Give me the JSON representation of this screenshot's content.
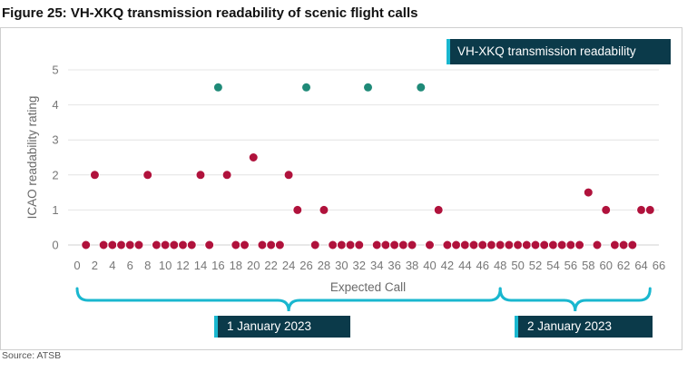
{
  "figure": {
    "title": "Figure 25: VH-XKQ transmission readability of scenic flight calls",
    "source": "Source: ATSB"
  },
  "legend": {
    "label": "VH-XKQ transmission readability"
  },
  "date_groups": [
    {
      "label": "1 January 2023",
      "from": 0,
      "to": 48
    },
    {
      "label": "2 January 2023",
      "from": 48,
      "to": 65
    }
  ],
  "colors": {
    "series_main": "#b0123c",
    "series_alt": "#1f8a78",
    "dot_outline": "#ffffff",
    "brace": "#19b7cf",
    "box_bg": "#0b3a4a"
  },
  "chart_data": {
    "type": "scatter",
    "title": "Figure 25: VH-XKQ transmission readability of scenic flight calls",
    "xlabel": "Expected Call",
    "ylabel": "ICAO readability rating",
    "xlim": [
      0,
      66
    ],
    "ylim": [
      0,
      5
    ],
    "xticks": [
      0,
      2,
      4,
      6,
      8,
      10,
      12,
      14,
      16,
      18,
      20,
      22,
      24,
      26,
      28,
      30,
      32,
      34,
      36,
      38,
      40,
      42,
      44,
      46,
      48,
      50,
      52,
      54,
      56,
      58,
      60,
      62,
      64,
      66
    ],
    "yticks": [
      0,
      1,
      2,
      3,
      4,
      5
    ],
    "grid": true,
    "legend_position": "top-right",
    "series": [
      {
        "name": "VH-XKQ transmission readability",
        "color": "#b0123c",
        "points": [
          [
            1,
            0
          ],
          [
            2,
            2
          ],
          [
            3,
            0
          ],
          [
            4,
            0
          ],
          [
            5,
            0
          ],
          [
            6,
            0
          ],
          [
            7,
            0
          ],
          [
            8,
            2
          ],
          [
            9,
            0
          ],
          [
            10,
            0
          ],
          [
            11,
            0
          ],
          [
            12,
            0
          ],
          [
            13,
            0
          ],
          [
            14,
            2
          ],
          [
            15,
            0
          ],
          [
            17,
            2
          ],
          [
            18,
            0
          ],
          [
            19,
            0
          ],
          [
            20,
            2.5
          ],
          [
            21,
            0
          ],
          [
            22,
            0
          ],
          [
            23,
            0
          ],
          [
            24,
            2
          ],
          [
            25,
            1
          ],
          [
            27,
            0
          ],
          [
            28,
            1
          ],
          [
            29,
            0
          ],
          [
            30,
            0
          ],
          [
            31,
            0
          ],
          [
            32,
            0
          ],
          [
            34,
            0
          ],
          [
            35,
            0
          ],
          [
            36,
            0
          ],
          [
            37,
            0
          ],
          [
            38,
            0
          ],
          [
            40,
            0
          ],
          [
            41,
            1
          ],
          [
            42,
            0
          ],
          [
            43,
            0
          ],
          [
            44,
            0
          ],
          [
            45,
            0
          ],
          [
            46,
            0
          ],
          [
            47,
            0
          ],
          [
            48,
            0
          ],
          [
            49,
            0
          ],
          [
            50,
            0
          ],
          [
            51,
            0
          ],
          [
            52,
            0
          ],
          [
            53,
            0
          ],
          [
            54,
            0
          ],
          [
            55,
            0
          ],
          [
            56,
            0
          ],
          [
            57,
            0
          ],
          [
            58,
            1.5
          ],
          [
            59,
            0
          ],
          [
            60,
            1
          ],
          [
            61,
            0
          ],
          [
            62,
            0
          ],
          [
            63,
            0
          ],
          [
            64,
            1
          ],
          [
            65,
            1
          ]
        ]
      },
      {
        "color": "#1f8a78",
        "points": [
          [
            16,
            4.5
          ],
          [
            26,
            4.5
          ],
          [
            33,
            4.5
          ],
          [
            39,
            4.5
          ]
        ]
      }
    ]
  }
}
